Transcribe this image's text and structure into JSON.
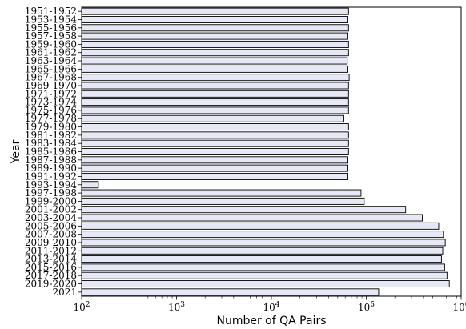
{
  "colors": {
    "bar_fill": "#e6e8f6",
    "bar_edge": "#000000",
    "axis": "#000000"
  },
  "chart_data": {
    "type": "bar",
    "orientation": "horizontal",
    "xlabel": "Number of QA Pairs",
    "ylabel": "Year",
    "xscale": "log",
    "xlim": [
      100,
      1000000
    ],
    "xticks": [
      {
        "value": 100,
        "base": "10",
        "exp": "2"
      },
      {
        "value": 1000,
        "base": "10",
        "exp": "3"
      },
      {
        "value": 10000,
        "base": "10",
        "exp": "4"
      },
      {
        "value": 100000,
        "base": "10",
        "exp": "5"
      },
      {
        "value": 1000000,
        "base": "10",
        "exp": "6"
      }
    ],
    "categories": [
      "1951-1952",
      "1953-1954",
      "1955-1956",
      "1957-1958",
      "1959-1960",
      "1961-1962",
      "1963-1964",
      "1965-1966",
      "1967-1968",
      "1969-1970",
      "1971-1972",
      "1973-1974",
      "1975-1976",
      "1977-1978",
      "1979-1980",
      "1981-1982",
      "1983-1984",
      "1985-1986",
      "1987-1988",
      "1989-1990",
      "1991-1992",
      "1993-1994",
      "1997-1998",
      "1999-2000",
      "2001-2002",
      "2003-2004",
      "2005-2006",
      "2007-2008",
      "2009-2010",
      "2011-2012",
      "2013-2014",
      "2015-2016",
      "2017-2018",
      "2019-2020",
      "2021"
    ],
    "values": [
      65000,
      64000,
      65000,
      64000,
      65000,
      65000,
      63000,
      64000,
      66000,
      65000,
      65000,
      65000,
      65000,
      58000,
      65000,
      65000,
      65000,
      65000,
      64000,
      64000,
      64000,
      150,
      88000,
      95000,
      260000,
      390000,
      580000,
      650000,
      680000,
      640000,
      620000,
      670000,
      710000,
      750000,
      135000
    ],
    "grid": false
  }
}
